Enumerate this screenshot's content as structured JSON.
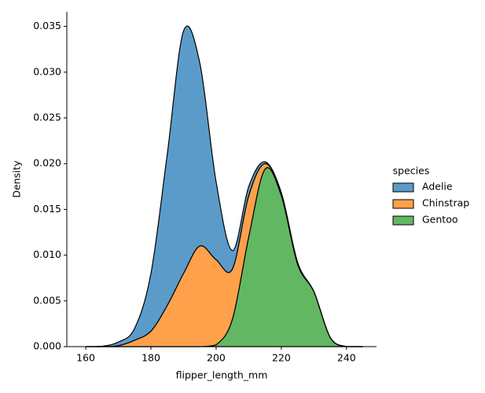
{
  "chart_data": {
    "type": "stacked-kde",
    "x_label": "flipper_length_mm",
    "y_label": "Density",
    "legend_title": "species",
    "legend_position": "right",
    "x": [
      160,
      165,
      170,
      175,
      180,
      185,
      190,
      195,
      200,
      205,
      210,
      215,
      220,
      225,
      230,
      235,
      240,
      245
    ],
    "series": [
      {
        "name": "Adelie",
        "color": "#5b9bca",
        "values": [
          0,
          5e-05,
          0.0004,
          0.0013,
          0.0063,
          0.0165,
          0.0265,
          0.02,
          0.0085,
          0.002,
          0.001,
          0.0002,
          0,
          0,
          0,
          0,
          0,
          0
        ]
      },
      {
        "name": "Chinstrap",
        "color": "#ffa04b",
        "values": [
          0,
          0,
          0.0001,
          0.0007,
          0.0017,
          0.0045,
          0.008,
          0.011,
          0.0093,
          0.0055,
          0.0045,
          0.0006,
          0.0003,
          0.0002,
          0,
          0,
          0,
          0
        ]
      },
      {
        "name": "Gentoo",
        "color": "#62b862",
        "values": [
          0,
          0,
          0,
          0,
          0,
          0,
          0,
          0,
          0.0002,
          0.003,
          0.012,
          0.0194,
          0.0165,
          0.009,
          0.006,
          0.001,
          0,
          0
        ]
      }
    ],
    "xlim": [
      154.2,
      249.2
    ],
    "xticks": [
      160,
      180,
      200,
      220,
      240
    ],
    "ylim": [
      0,
      0.0366
    ],
    "yticks": [
      {
        "value": 0,
        "label": "0.000"
      },
      0.005,
      {
        "value": 0.01,
        "label": "0.010"
      },
      0.015,
      {
        "value": 0.02,
        "label": "0.020"
      },
      0.025,
      {
        "value": 0.03,
        "label": "0.030"
      },
      0.035
    ]
  }
}
